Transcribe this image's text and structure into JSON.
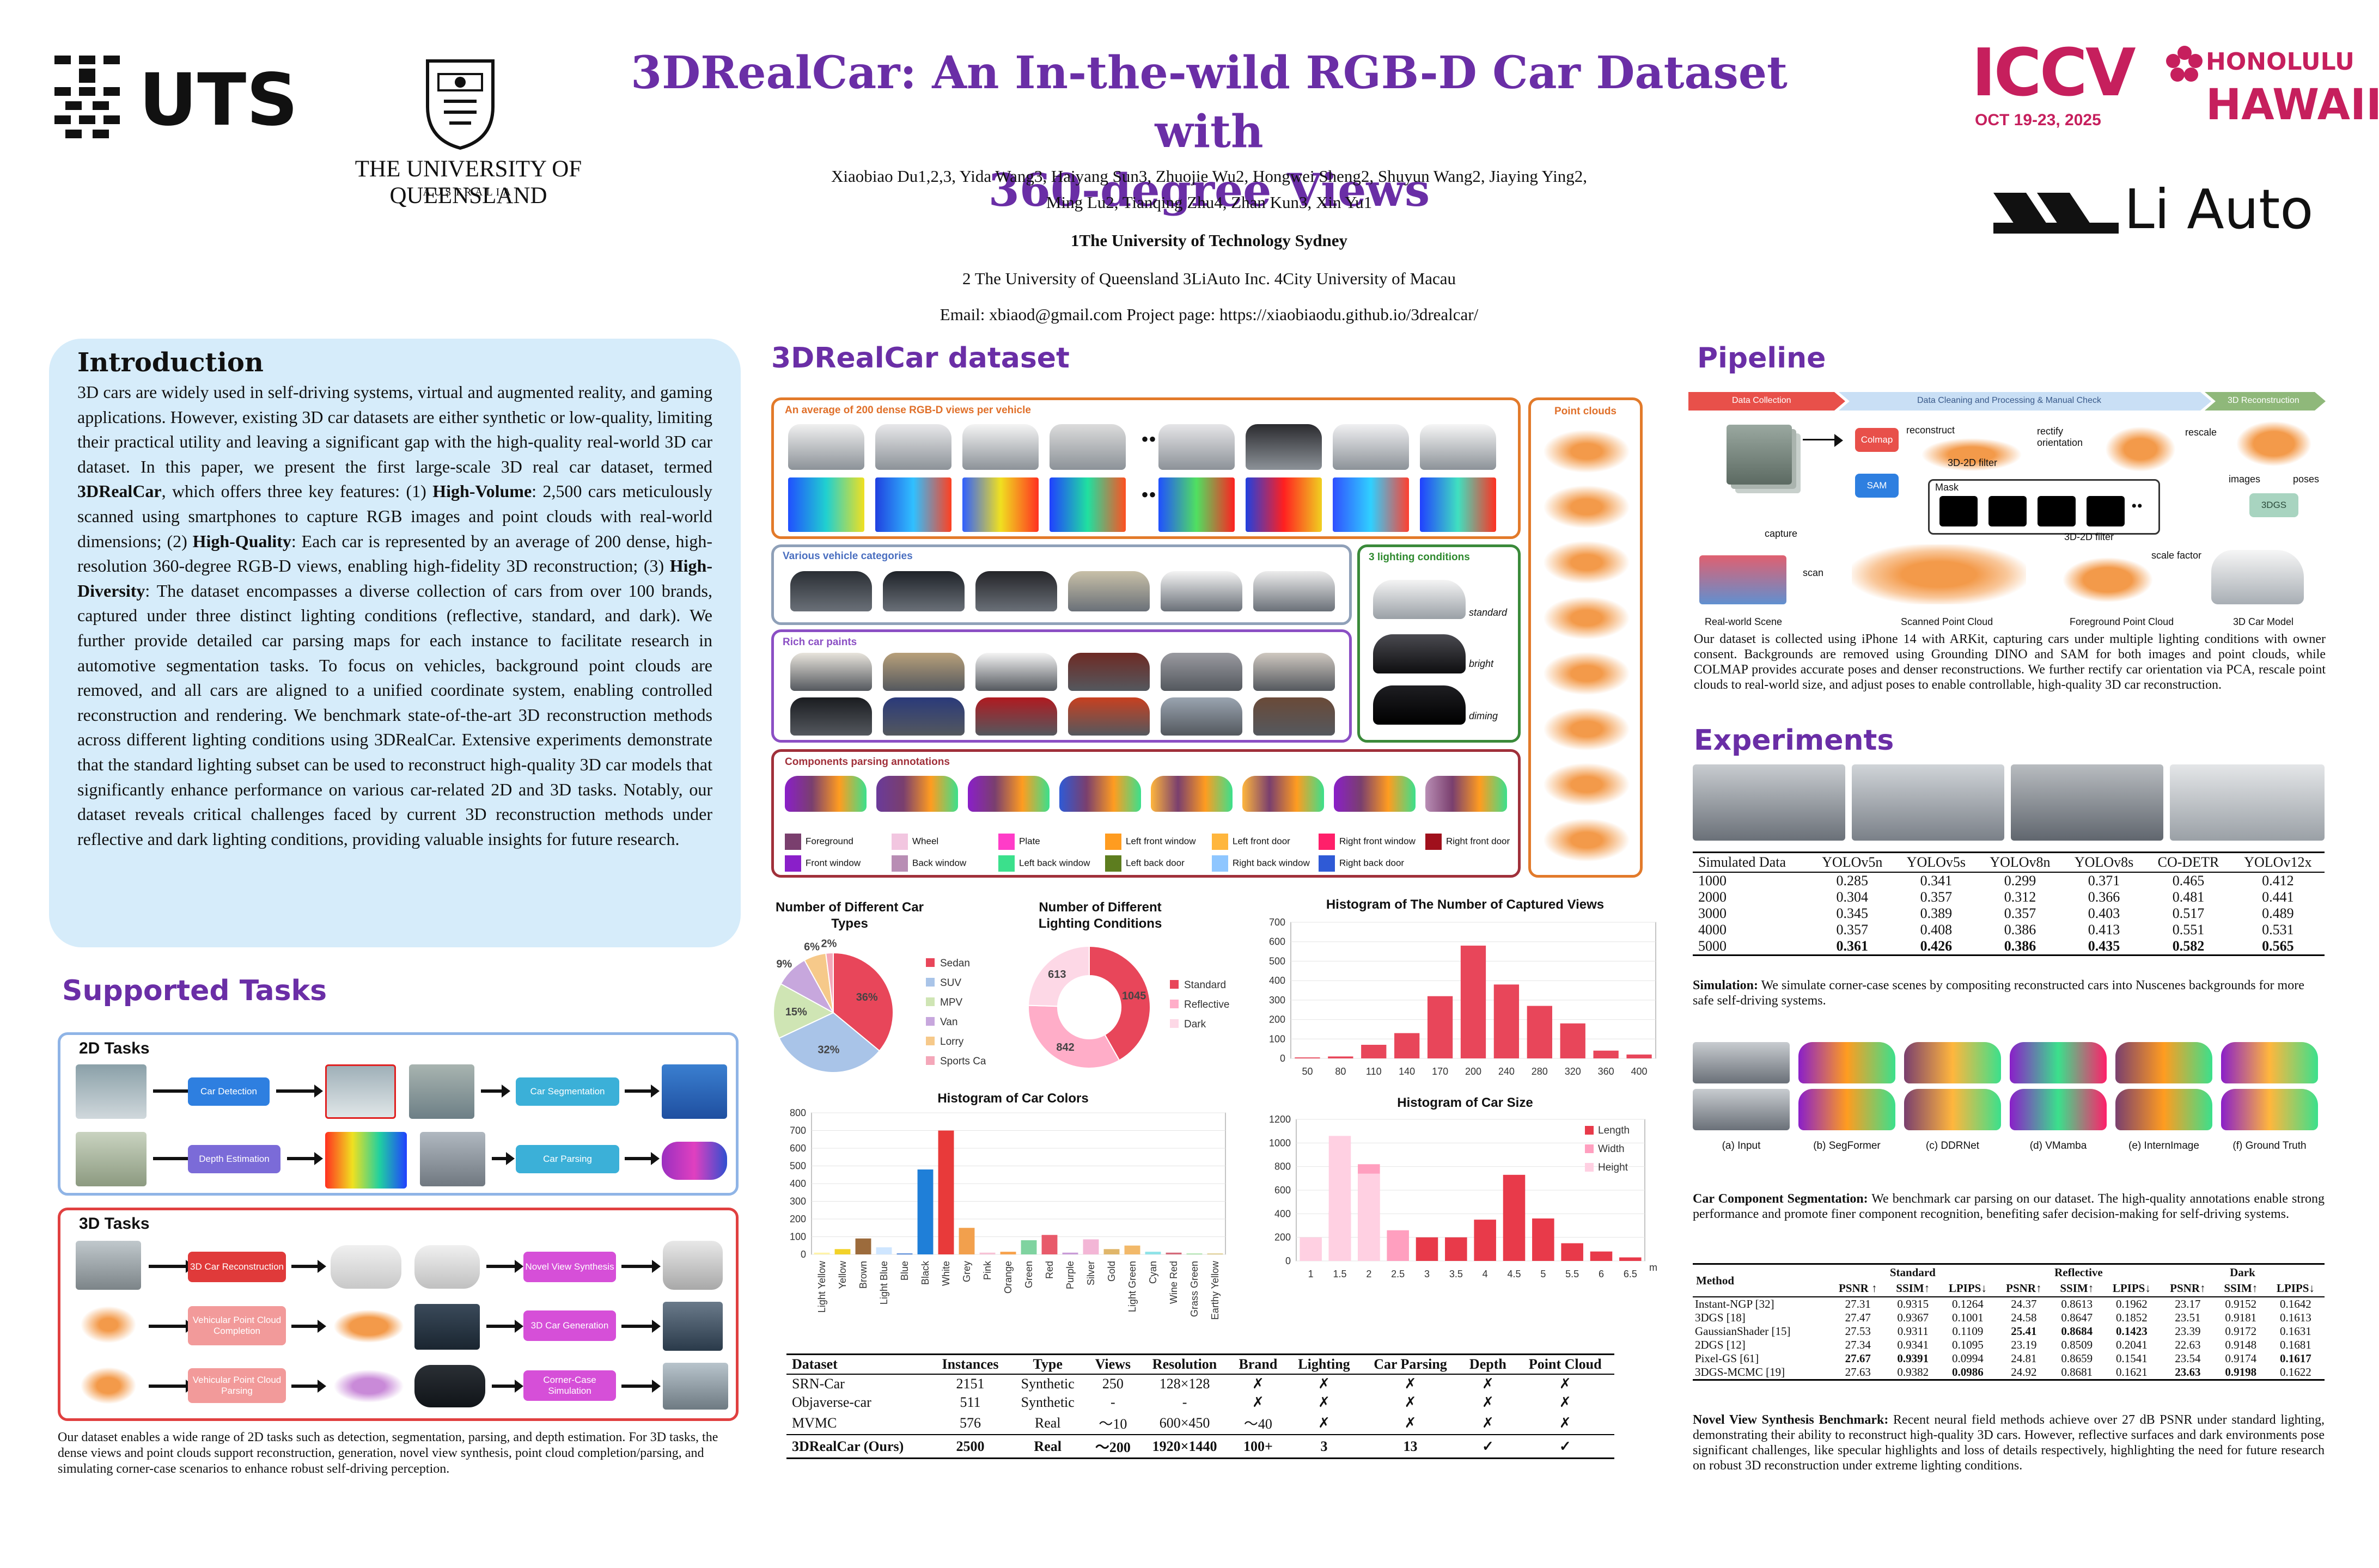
{
  "header": {
    "title_line1": "3DRealCar: An In-the-wild RGB-D Car Dataset with",
    "title_line2": "360-degree Views",
    "authors_line1": "Xiaobiao Du1,2,3, Yida Wang3, Haiyang Sun3, Zhuojie Wu2, Hongwei Sheng2, Shuyun Wang2, Jiaying Ying2,",
    "authors_line2": "Ming Lu2, Tianqing Zhu4, Zhan Kun3, Xin Yu1",
    "affil1": "1The University of Technology Sydney",
    "affil2": "2 The University of Queensland   3LiAuto Inc.    4City University of Macau",
    "contact": "Email: xbiaod@gmail.com     Project page: https://xiaobiaodu.github.io/3drealcar/"
  },
  "logos": {
    "uts": "UTS",
    "uq_name": "THE UNIVERSITY OF QUEENSLAND",
    "uq_country": "AUSTRALIA",
    "iccv": "ICCV",
    "iccv_date": "OCT 19-23, 2025",
    "iccv_city": "HONOLULU",
    "iccv_state": "HAWAII",
    "liauto": "Li Auto"
  },
  "intro": {
    "heading": "Introduction",
    "p1": "3D cars are widely used in self-driving systems, virtual and augmented reality, and gaming applications. However, existing 3D car datasets are either synthetic or low-quality, limiting their practical utility and leaving a significant gap with the high-quality real-world 3D car dataset. In this paper, we present the first large-scale 3D real car dataset, termed ",
    "b1": "3DRealCar",
    "p2": ", which offers three key features: (1) ",
    "b2": "High-Volume",
    "p3": ": 2,500 cars meticulously scanned using smartphones to capture RGB images and point clouds with real-world dimensions; (2) ",
    "b3": "High-Quality",
    "p4": ": Each car is represented by an average of 200 dense, high-resolution 360-degree RGB-D views, enabling high-fidelity 3D reconstruction; (3) ",
    "b4": "High-Diversity",
    "p5": ": The dataset encompasses a diverse collection of cars from over 100 brands, captured under three distinct lighting conditions (reflective, standard, and dark). We further provide detailed car parsing maps for each instance to facilitate research in automotive segmentation tasks. To focus on vehicles, background point clouds are removed, and all cars are aligned to a unified coordinate system, enabling controlled reconstruction and rendering. We benchmark state-of-the-art 3D reconstruction methods across different lighting conditions using 3DRealCar. Extensive experiments demonstrate that the standard lighting subset can be used to reconstruct high-quality 3D car models that significantly enhance performance on various car-related 2D and 3D tasks. Notably, our dataset reveals critical challenges faced by current 3D reconstruction methods under reflective and dark lighting conditions, providing valuable insights for future research."
  },
  "tasks": {
    "heading": "Supported Tasks",
    "t2d_title": "2D Tasks",
    "t3d_title": "3D Tasks",
    "car_detection": "Car Detection",
    "car_segmentation": "Car Segmentation",
    "depth_estimation": "Depth Estimation",
    "car_parsing": "Car Parsing",
    "car_reconstruction": "3D Car Reconstruction",
    "novel_view": "Novel View Synthesis",
    "pc_completion": "Vehicular Point Cloud Completion",
    "car_generation": "3D Car Generation",
    "pc_parsing": "Vehicular Point Cloud Parsing",
    "corner_case": "Corner-Case Simulation",
    "caption": "Our dataset enables a wide range of 2D tasks such as detection, segmentation, parsing, and depth estimation. For 3D tasks, the dense views and point clouds support reconstruction, generation, novel view synthesis, point cloud completion/parsing, and simulating corner-case scenarios to enhance robust self-driving perception."
  },
  "dataset": {
    "heading": "3DRealCar dataset",
    "views_label": "An average of 200 dense RGB-D views per vehicle",
    "pc_label": "Point clouds",
    "categories_label": "Various vehicle categories",
    "lighting_label": "3 lighting conditions",
    "light_standard": "standard",
    "light_bright": "bright",
    "light_dim": "diming",
    "paints_label": "Rich car paints",
    "parsing_label": "Components parsing annotations",
    "dots": "••",
    "parsing_legend": [
      {
        "name": "Foreground",
        "color": "#7a3f6e"
      },
      {
        "name": "Wheel",
        "color": "#f2c6e0"
      },
      {
        "name": "Plate",
        "color": "#ff3cc8"
      },
      {
        "name": "Left front window",
        "color": "#ff9c20"
      },
      {
        "name": "Left front door",
        "color": "#ffb63d"
      },
      {
        "name": "Right front window",
        "color": "#ff1f6a"
      },
      {
        "name": "Right front door",
        "color": "#a0101c"
      },
      {
        "name": "Front window",
        "color": "#8a1fc9"
      },
      {
        "name": "Back window",
        "color": "#b88db4"
      },
      {
        "name": "Left back window",
        "color": "#3be08c"
      },
      {
        "name": "Left back door",
        "color": "#5d7d1f"
      },
      {
        "name": "Right back window",
        "color": "#8ec6ff"
      },
      {
        "name": "Right back door",
        "color": "#2f5ad6"
      }
    ]
  },
  "charts": {
    "types_title": "Number of Different Car Types",
    "lighting_title": "Number of Different Lighting Conditions",
    "views_title": "Histogram of The Number of Captured Views",
    "colors_title": "Histogram of Car Colors",
    "size_title": "Histogram of Car Size",
    "size_unit": "m"
  },
  "chart_data": [
    {
      "type": "pie",
      "title": "Number of Different Car Types",
      "categories": [
        "Sedan",
        "SUV",
        "MPV",
        "Van",
        "Lorry",
        "Sports Car"
      ],
      "values": [
        36,
        32,
        15,
        9,
        6,
        2
      ],
      "labels": [
        "36%",
        "32%",
        "15%",
        "9%",
        "6%",
        "2%"
      ],
      "colors": [
        "#e8465a",
        "#a9c4e8",
        "#cfe5b4",
        "#c7a7dd",
        "#f6c98a",
        "#f4a7b9"
      ]
    },
    {
      "type": "pie",
      "title": "Number of Different Lighting Conditions",
      "categories": [
        "Standard",
        "Reflective",
        "Dark"
      ],
      "values": [
        1045,
        842,
        613
      ],
      "labels": [
        "1045",
        "842",
        "613"
      ],
      "colors": [
        "#e8465a",
        "#ffadc8",
        "#fdd8e6"
      ]
    },
    {
      "type": "bar",
      "title": "Histogram of The Number of Captured Views",
      "categories": [
        "50",
        "80",
        "110",
        "140",
        "170",
        "200",
        "240",
        "280",
        "320",
        "360",
        "400"
      ],
      "values": [
        5,
        10,
        70,
        130,
        320,
        580,
        380,
        270,
        180,
        40,
        20
      ],
      "ylim": [
        0,
        700
      ],
      "yticks": [
        "0",
        "100",
        "200",
        "300",
        "400",
        "500",
        "600",
        "700"
      ],
      "color": "#e8465a"
    },
    {
      "type": "bar",
      "title": "Histogram of Car Colors",
      "categories": [
        "Light Yellow",
        "Yellow",
        "Brown",
        "Light Blue",
        "Blue",
        "Black",
        "White",
        "Grey",
        "Pink",
        "Orange",
        "Green",
        "Red",
        "Purple",
        "Silver",
        "Gold",
        "Light Green",
        "Cyan",
        "Wine Red",
        "Grass Green",
        "Earthy Yellow"
      ],
      "values": [
        10,
        30,
        90,
        40,
        5,
        480,
        700,
        150,
        10,
        15,
        80,
        110,
        10,
        85,
        30,
        50,
        15,
        10,
        5,
        5
      ],
      "colors": [
        "#fff3a8",
        "#f2d22a",
        "#9c6b3c",
        "#cfe6ff",
        "#2f6fd0",
        "#1f7fd8",
        "#e83a3a",
        "#f2a04d",
        "#f7c2d6",
        "#f7a24d",
        "#7fd3a0",
        "#e85a6a",
        "#c99bd8",
        "#f3b6d6",
        "#e0b66a",
        "#f2b96a",
        "#8fe3e8",
        "#d56a7a",
        "#9fdf9f",
        "#d9c47a"
      ],
      "ylim": [
        0,
        800
      ],
      "yticks": [
        "0",
        "100",
        "200",
        "300",
        "400",
        "500",
        "600",
        "700",
        "800"
      ]
    },
    {
      "type": "bar",
      "title": "Histogram of Car Size",
      "categories": [
        "1",
        "1.5",
        "2",
        "2.5",
        "3",
        "3.5",
        "4",
        "4.5",
        "5",
        "5.5",
        "6",
        "6.5"
      ],
      "series": [
        {
          "name": "Length",
          "values": [
            0,
            0,
            0,
            0,
            200,
            200,
            350,
            730,
            360,
            150,
            80,
            30
          ],
          "color": "#e83a4a"
        },
        {
          "name": "Width",
          "values": [
            0,
            420,
            820,
            260,
            0,
            0,
            0,
            0,
            0,
            0,
            0,
            0
          ],
          "color": "#ff9fbf"
        },
        {
          "name": "Height",
          "values": [
            200,
            1060,
            740,
            0,
            0,
            0,
            0,
            0,
            0,
            0,
            0,
            0
          ],
          "color": "#ffd0e2"
        }
      ],
      "ylim": [
        0,
        1200
      ],
      "yticks": [
        "0",
        "200",
        "400",
        "600",
        "800",
        "1000",
        "1200"
      ],
      "xlabel": "m"
    }
  ],
  "comparison": {
    "headers": [
      "Dataset",
      "Instances",
      "Type",
      "Views",
      "Resolution",
      "Brand",
      "Lighting",
      "Car Parsing",
      "Depth",
      "Point Cloud"
    ],
    "rows": [
      [
        "SRN-Car",
        "2151",
        "Synthetic",
        "250",
        "128×128",
        "✗",
        "✗",
        "✗",
        "✗",
        "✗"
      ],
      [
        "Objaverse-car",
        "511",
        "Synthetic",
        "-",
        "-",
        "✗",
        "✗",
        "✗",
        "✗",
        "✗"
      ],
      [
        "MVMC",
        "576",
        "Real",
        "～10",
        "600×450",
        "～40",
        "✗",
        "✗",
        "✗",
        "✗"
      ]
    ],
    "ours": [
      "3DRealCar (Ours)",
      "2500",
      "Real",
      "～200",
      "1920×1440",
      "100+",
      "3",
      "13",
      "✓",
      "✓"
    ]
  },
  "pipeline": {
    "heading": "Pipeline",
    "stage1": "Data Collection",
    "stage2": "Data Cleaning and Processing  & Manual Check",
    "stage3": "3D Reconstruction",
    "colmap": "Colmap",
    "sam": "SAM",
    "reconstruct": "reconstruct",
    "rectify": "rectify orientation",
    "rescale": "rescale",
    "filter": "3D-2D filter",
    "mask": "Mask",
    "capture": "capture",
    "images": "images",
    "poses": "poses",
    "gs": "3DGS",
    "scan": "scan",
    "filter2": "3D-2D filter",
    "scale_factor": "scale factor",
    "real_scene": "Real-world Scene",
    "scanned_pc": "Scanned Point Cloud",
    "fg_pc": "Foreground Point Cloud",
    "car_model": "3D Car Model",
    "caption": "Our dataset is collected using iPhone 14 with ARKit, capturing cars under multiple lighting conditions with owner consent. Backgrounds are removed using Grounding DINO and SAM for both images and point clouds, while COLMAP provides accurate poses and denser reconstructions. We further rectify car orientation via PCA, rescale point clouds to real-world size, and adjust poses to enable controllable, high-quality 3D car reconstruction."
  },
  "experiments": {
    "heading": "Experiments",
    "sim_headers": [
      "Simulated Data",
      "YOLOv5n",
      "YOLOv5s",
      "YOLOv8n",
      "YOLOv8s",
      "CO-DETR",
      "YOLOv12x"
    ],
    "sim_rows": [
      [
        "1000",
        "0.285",
        "0.341",
        "0.299",
        "0.371",
        "0.465",
        "0.412"
      ],
      [
        "2000",
        "0.304",
        "0.357",
        "0.312",
        "0.366",
        "0.481",
        "0.441"
      ],
      [
        "3000",
        "0.345",
        "0.389",
        "0.357",
        "0.403",
        "0.517",
        "0.489"
      ],
      [
        "4000",
        "0.357",
        "0.408",
        "0.386",
        "0.413",
        "0.551",
        "0.531"
      ],
      [
        "5000",
        "0.361",
        "0.426",
        "0.386",
        "0.435",
        "0.582",
        "0.565"
      ]
    ],
    "sim_caption_bold": "Simulation:",
    "sim_caption": " We simulate corner-case scenes by compositing reconstructed cars into Nuscenes backgrounds for more safe self-driving systems.",
    "seg_labels": [
      "(a) Input",
      "(b) SegFormer",
      "(c) DDRNet",
      "(d) VMamba",
      "(e) InternImage",
      "(f) Ground Truth"
    ],
    "seg_caption_bold": "Car Component Segmentation:",
    "seg_caption": " We benchmark car parsing on our dataset. The high-quality annotations enable strong performance and promote finer component recognition, benefiting safer decision-making for self-driving systems.",
    "nvs_groups": [
      "Standard",
      "Reflective",
      "Dark"
    ],
    "nvs_method_header": "Method",
    "nvs_metric_headers": [
      "PSNR ↑",
      "SSIM↑",
      "LPIPS↓",
      "PSNR↑",
      "SSIM↑",
      "LPIPS↓",
      "PSNR↑",
      "SSIM↑",
      "LPIPS↓"
    ],
    "nvs_rows": [
      [
        "Instant-NGP [32]",
        "27.31",
        "0.9315",
        "0.1264",
        "24.37",
        "0.8613",
        "0.1962",
        "23.17",
        "0.9152",
        "0.1642"
      ],
      [
        "3DGS [18]",
        "27.47",
        "0.9367",
        "0.1001",
        "24.58",
        "0.8647",
        "0.1852",
        "23.51",
        "0.9181",
        "0.1613"
      ],
      [
        "GaussianShader [15]",
        "27.53",
        "0.9311",
        "0.1109",
        "25.41",
        "0.8684",
        "0.1423",
        "23.39",
        "0.9172",
        "0.1631"
      ],
      [
        "2DGS [12]",
        "27.34",
        "0.9341",
        "0.1095",
        "23.19",
        "0.8509",
        "0.2041",
        "22.63",
        "0.9148",
        "0.1681"
      ],
      [
        "Pixel-GS [61]",
        "27.67",
        "0.9391",
        "0.0994",
        "24.81",
        "0.8659",
        "0.1541",
        "23.54",
        "0.9174",
        "0.1617"
      ],
      [
        "3DGS-MCMC [19]",
        "27.63",
        "0.9382",
        "0.0986",
        "24.92",
        "0.8681",
        "0.1621",
        "23.63",
        "0.9198",
        "0.1622"
      ]
    ],
    "nvs_caption_bold": "Novel View Synthesis Benchmark:",
    "nvs_caption": " Recent neural field methods achieve over 27 dB PSNR under standard lighting, demonstrating their ability to reconstruct high-quality 3D cars. However, reflective surfaces and dark environments pose significant challenges, like specular highlights and loss of details respectively, highlighting the need for future research on robust 3D reconstruction under extreme lighting conditions."
  },
  "colors": {
    "accent": "#6a2ea6",
    "intro_bg": "#d6ecfa",
    "orange": "#e27a2a",
    "purple_box": "#8b4fc4",
    "green_box": "#3a8a3a",
    "maroon_box": "#a0303a",
    "blue_box": "#8fb4e6",
    "red_box": "#e04040"
  }
}
